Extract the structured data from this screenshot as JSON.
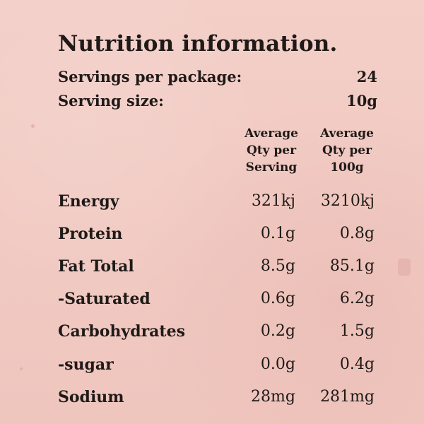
{
  "label": {
    "title": "Nutrition information.",
    "servings_per_package_label": "Servings per package:",
    "servings_per_package_value": "24",
    "serving_size_label": "Serving size:",
    "serving_size_value": "10g",
    "column_headers": [
      "Average\nQty per\nServing",
      "Average\nQty per\n100g"
    ],
    "rows": [
      {
        "name": "Energy",
        "per_serving": "321kj",
        "per_100g": "3210kj"
      },
      {
        "name": "Protein",
        "per_serving": "0.1g",
        "per_100g": "0.8g"
      },
      {
        "name": "Fat Total",
        "per_serving": "8.5g",
        "per_100g": "85.1g"
      },
      {
        "name": "-Saturated",
        "per_serving": "0.6g",
        "per_100g": "6.2g"
      },
      {
        "name": "Carbohydrates",
        "per_serving": "0.2g",
        "per_100g": "1.5g"
      },
      {
        "name": "-sugar",
        "per_serving": "0.0g",
        "per_100g": "0.4g"
      },
      {
        "name": "Sodium",
        "per_serving": "28mg",
        "per_100g": "281mg"
      }
    ]
  },
  "colors": {
    "background": "#f1c9c2",
    "text": "#1f1a18"
  }
}
